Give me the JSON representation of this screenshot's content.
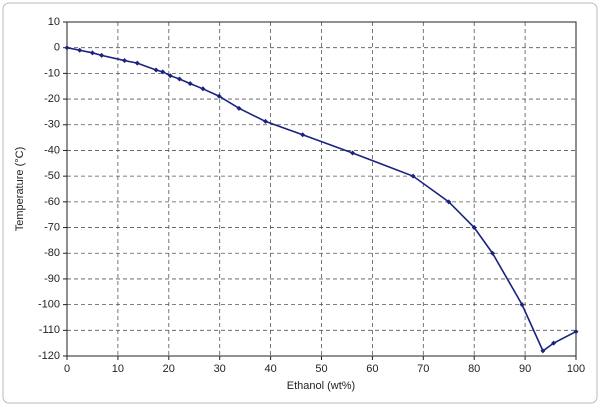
{
  "chart_data": {
    "type": "line",
    "x_label": "Ethanol (wt%)",
    "y_label": "Temperature (°C)",
    "x": [
      0,
      2.5,
      5,
      6.8,
      11.3,
      13.8,
      17.5,
      18.8,
      20.3,
      22.1,
      24.2,
      26.7,
      29.9,
      33.8,
      39,
      46.3,
      56.1,
      68,
      75,
      80,
      83.6,
      89.4,
      93.5,
      95.6,
      100
    ],
    "series": [
      {
        "color": "#1a237e",
        "values": [
          0,
          -1,
          -2,
          -3,
          -5,
          -6,
          -8.7,
          -9.4,
          -10.9,
          -12.2,
          -14,
          -16,
          -18.9,
          -23.6,
          -28.7,
          -33.9,
          -41,
          -50,
          -60,
          -70,
          -80,
          -100,
          -118,
          -115,
          -110.5
        ]
      }
    ],
    "xlim": [
      0,
      100
    ],
    "xticks": [
      0,
      10,
      20,
      30,
      40,
      50,
      60,
      70,
      80,
      90,
      100
    ],
    "ylim": [
      -120,
      10
    ],
    "yticks": [
      -120,
      -110,
      -100,
      -90,
      -80,
      -70,
      -60,
      -50,
      -40,
      -30,
      -20,
      -10,
      0,
      10
    ],
    "grid": true
  }
}
